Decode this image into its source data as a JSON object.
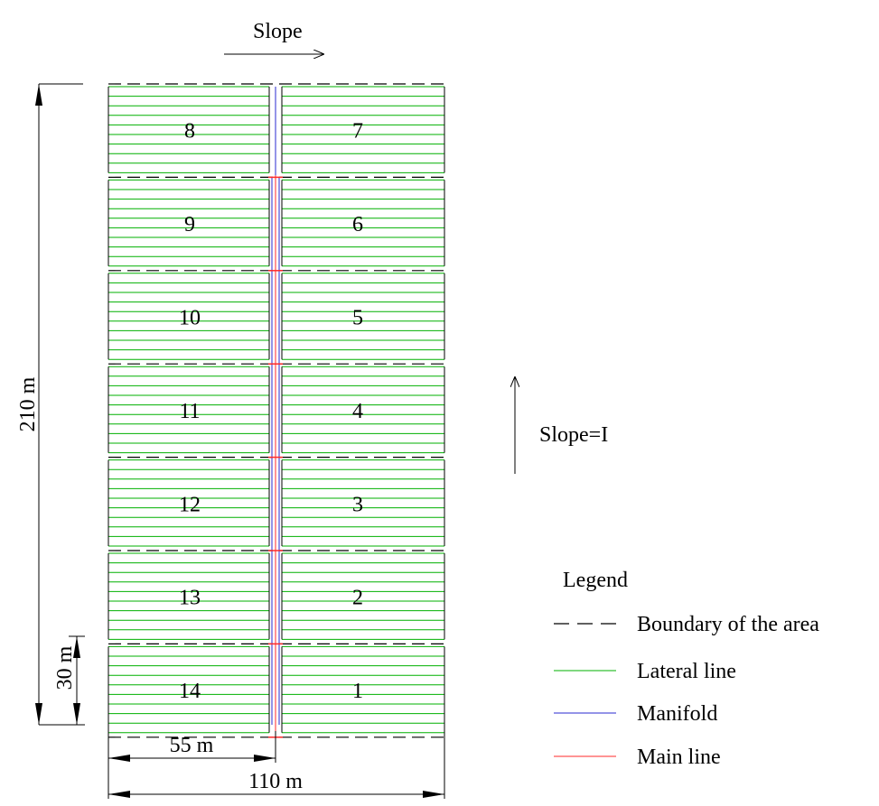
{
  "slope_top": "Slope",
  "slope_side": "Slope=I",
  "dims": {
    "height_total": "210 m",
    "height_block": "30 m",
    "width_half": "55 m",
    "width_total": "110 m"
  },
  "left_blocks": [
    "8",
    "9",
    "10",
    "11",
    "12",
    "13",
    "14"
  ],
  "right_blocks": [
    "7",
    "6",
    "5",
    "4",
    "3",
    "2",
    "1"
  ],
  "legend": {
    "title": "Legend",
    "items": [
      {
        "label": "Boundary of the area",
        "style": "dashed",
        "color": "#000000"
      },
      {
        "label": "Lateral line",
        "style": "solid",
        "color": "#00b000"
      },
      {
        "label": "Manifold",
        "style": "solid",
        "color": "#2a2ad0"
      },
      {
        "label": "Main line",
        "style": "solid",
        "color": "#ff2a2a"
      }
    ]
  }
}
